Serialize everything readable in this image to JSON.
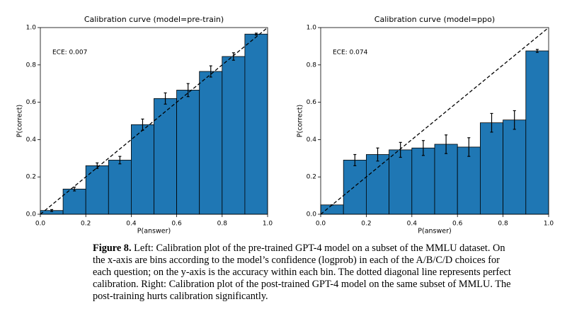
{
  "chart_data": [
    {
      "type": "histogram",
      "title": "Calibration curve (model=pre-train)",
      "xlabel": "P(answer)",
      "ylabel": "P(correct)",
      "annotation": "ECE: 0.007",
      "color": "#1f77b4",
      "bins": [
        0,
        0.1,
        0.2,
        0.3,
        0.4,
        0.5,
        0.6,
        0.7,
        0.8,
        0.9,
        1
      ],
      "values": [
        0.02,
        0.135,
        0.26,
        0.29,
        0.48,
        0.62,
        0.665,
        0.765,
        0.845,
        0.965
      ],
      "errors": [
        0.005,
        0.01,
        0.015,
        0.02,
        0.03,
        0.03,
        0.035,
        0.03,
        0.02,
        0.005
      ],
      "xlim": [
        0,
        1
      ],
      "ylim": [
        0,
        1
      ],
      "xticks": [
        {
          "value": 0,
          "label": "0.0"
        },
        0.2,
        0.4,
        0.6,
        0.8,
        {
          "value": 1,
          "label": "1.0"
        }
      ],
      "yticks": [
        {
          "value": 0,
          "label": "0.0"
        },
        0.2,
        0.4,
        0.6,
        0.8,
        {
          "value": 1,
          "label": "1.0"
        }
      ]
    },
    {
      "type": "histogram",
      "title": "Calibration curve (model=ppo)",
      "xlabel": "P(answer)",
      "ylabel": "P(correct)",
      "annotation": "ECE: 0.074",
      "color": "#1f77b4",
      "bins": [
        0,
        0.1,
        0.2,
        0.3,
        0.4,
        0.5,
        0.6,
        0.7,
        0.8,
        0.9,
        1
      ],
      "values": [
        0.05,
        0.29,
        0.32,
        0.345,
        0.355,
        0.375,
        0.36,
        0.49,
        0.505,
        0.875
      ],
      "errors": [
        0,
        0.03,
        0.035,
        0.04,
        0.04,
        0.05,
        0.05,
        0.05,
        0.05,
        0.008
      ],
      "xlim": [
        0,
        1
      ],
      "ylim": [
        0,
        1
      ],
      "xticks": [
        {
          "value": 0,
          "label": "0.0"
        },
        0.2,
        0.4,
        0.6,
        0.8,
        {
          "value": 1,
          "label": "1.0"
        }
      ],
      "yticks": [
        {
          "value": 0,
          "label": "0.0"
        },
        0.2,
        0.4,
        0.6,
        0.8,
        {
          "value": 1,
          "label": "1.0"
        }
      ]
    }
  ],
  "caption": {
    "label": "Figure 8.",
    "text": "Left: Calibration plot of the pre-trained GPT-4 model on a subset of the MMLU dataset. On the x-axis are bins according to the model’s confidence (logprob) in each of the A/B/C/D choices for each question; on the y-axis is the accuracy within each bin. The dotted diagonal line represents perfect calibration. Right: Calibration plot of the post-trained GPT-4 model on the same subset of MMLU. The post-training hurts calibration significantly."
  }
}
